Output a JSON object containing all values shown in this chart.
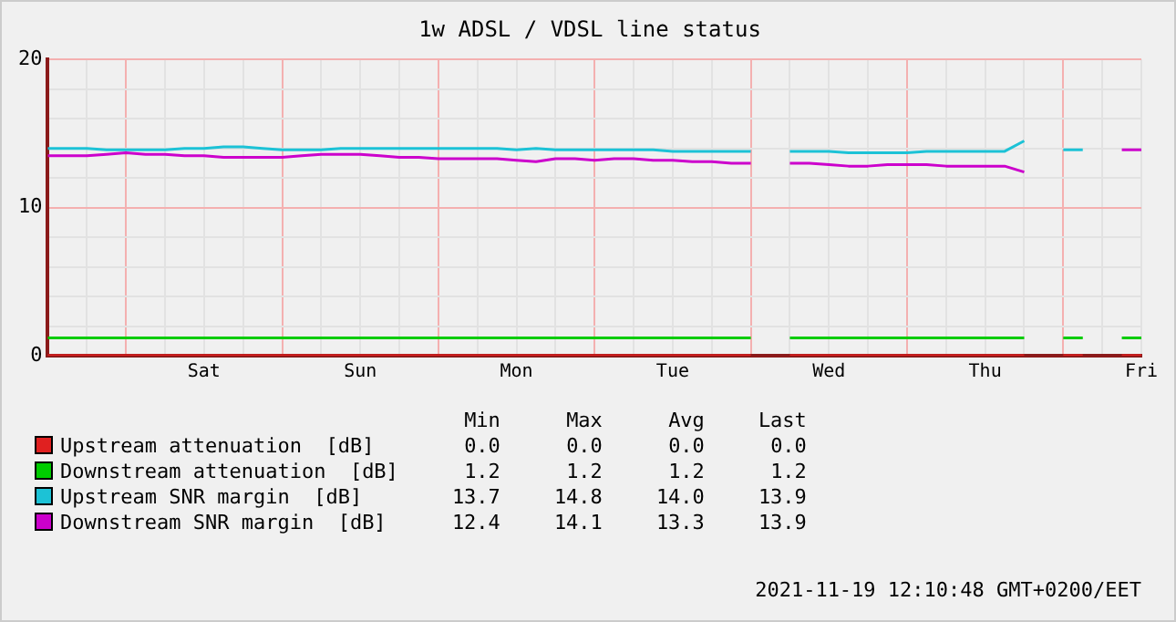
{
  "chart_data": {
    "type": "line",
    "title": "1w ADSL / VDSL line status",
    "categories": [
      null,
      null,
      null,
      null,
      null,
      null,
      null,
      null,
      "Sat",
      null,
      null,
      null,
      null,
      null,
      null,
      null,
      "Sun",
      null,
      null,
      null,
      null,
      null,
      null,
      null,
      "Mon",
      null,
      null,
      null,
      null,
      null,
      null,
      null,
      "Tue",
      null,
      null,
      null,
      null,
      null,
      null,
      null,
      "Wed",
      null,
      null,
      null,
      null,
      null,
      null,
      null,
      "Thu",
      null,
      null,
      null,
      null,
      null,
      null,
      null,
      "Fri"
    ],
    "series": [
      {
        "name": "Upstream attenuation  [dB]",
        "color": "#e02020",
        "values": [
          0,
          0,
          0,
          0,
          0,
          0,
          0,
          0,
          0,
          0,
          0,
          0,
          0,
          0,
          0,
          0,
          0,
          0,
          0,
          0,
          0,
          0,
          0,
          0,
          0,
          0,
          0,
          0,
          0,
          0,
          0,
          0,
          0,
          0,
          0,
          0,
          0,
          null,
          0,
          0,
          0,
          0,
          0,
          0,
          0,
          0,
          0,
          0,
          0,
          0,
          0,
          null,
          0,
          0,
          null,
          0,
          0
        ]
      },
      {
        "name": "Downstream attenuation  [dB]",
        "color": "#00cc00",
        "values": [
          1.2,
          1.2,
          1.2,
          1.2,
          1.2,
          1.2,
          1.2,
          1.2,
          1.2,
          1.2,
          1.2,
          1.2,
          1.2,
          1.2,
          1.2,
          1.2,
          1.2,
          1.2,
          1.2,
          1.2,
          1.2,
          1.2,
          1.2,
          1.2,
          1.2,
          1.2,
          1.2,
          1.2,
          1.2,
          1.2,
          1.2,
          1.2,
          1.2,
          1.2,
          1.2,
          1.2,
          1.2,
          null,
          1.2,
          1.2,
          1.2,
          1.2,
          1.2,
          1.2,
          1.2,
          1.2,
          1.2,
          1.2,
          1.2,
          1.2,
          1.2,
          null,
          1.2,
          1.2,
          null,
          1.2,
          1.2
        ]
      },
      {
        "name": "Upstream SNR margin  [dB]",
        "color": "#1cc2d6",
        "values": [
          14.0,
          14.0,
          14.0,
          13.9,
          13.9,
          13.9,
          13.9,
          14.0,
          14.0,
          14.1,
          14.1,
          14.0,
          13.9,
          13.9,
          13.9,
          14.0,
          14.0,
          14.0,
          14.0,
          14.0,
          14.0,
          14.0,
          14.0,
          14.0,
          13.9,
          14.0,
          13.9,
          13.9,
          13.9,
          13.9,
          13.9,
          13.9,
          13.8,
          13.8,
          13.8,
          13.8,
          13.8,
          null,
          13.8,
          13.8,
          13.8,
          13.7,
          13.7,
          13.7,
          13.7,
          13.8,
          13.8,
          13.8,
          13.8,
          13.8,
          14.5,
          null,
          13.9,
          13.9,
          null,
          null,
          null
        ]
      },
      {
        "name": "Downstream SNR margin  [dB]",
        "color": "#cc00cc",
        "values": [
          13.5,
          13.5,
          13.5,
          13.6,
          13.7,
          13.6,
          13.6,
          13.5,
          13.5,
          13.4,
          13.4,
          13.4,
          13.4,
          13.5,
          13.6,
          13.6,
          13.6,
          13.5,
          13.4,
          13.4,
          13.3,
          13.3,
          13.3,
          13.3,
          13.2,
          13.1,
          13.3,
          13.3,
          13.2,
          13.3,
          13.3,
          13.2,
          13.2,
          13.1,
          13.1,
          13.0,
          13.0,
          null,
          13.0,
          13.0,
          12.9,
          12.8,
          12.8,
          12.9,
          12.9,
          12.9,
          12.8,
          12.8,
          12.8,
          12.8,
          12.4,
          null,
          null,
          null,
          null,
          13.9,
          13.9
        ]
      }
    ],
    "ylim": [
      0,
      20
    ],
    "yticks": [
      0,
      {
        "value": 2,
        "label": null
      },
      {
        "value": 4,
        "label": null
      },
      {
        "value": 6,
        "label": null
      },
      {
        "value": 8,
        "label": null
      },
      10,
      {
        "value": 12,
        "label": null
      },
      {
        "value": 14,
        "label": null
      },
      {
        "value": 16,
        "label": null
      },
      {
        "value": 18,
        "label": null
      },
      20
    ],
    "grid": true,
    "legend": "bottom",
    "marker": "none",
    "line_style": "solid",
    "annotations": [
      "Min Max Avg Last",
      "0.0 0.0 0.0 0.0",
      "1.2 1.2 1.2 1.2",
      "13.7 14.8 14.0 13.9",
      "12.4 14.1 13.3 13.9",
      "2021-11-19 12:10:48 GMT+0200/EET"
    ]
  }
}
